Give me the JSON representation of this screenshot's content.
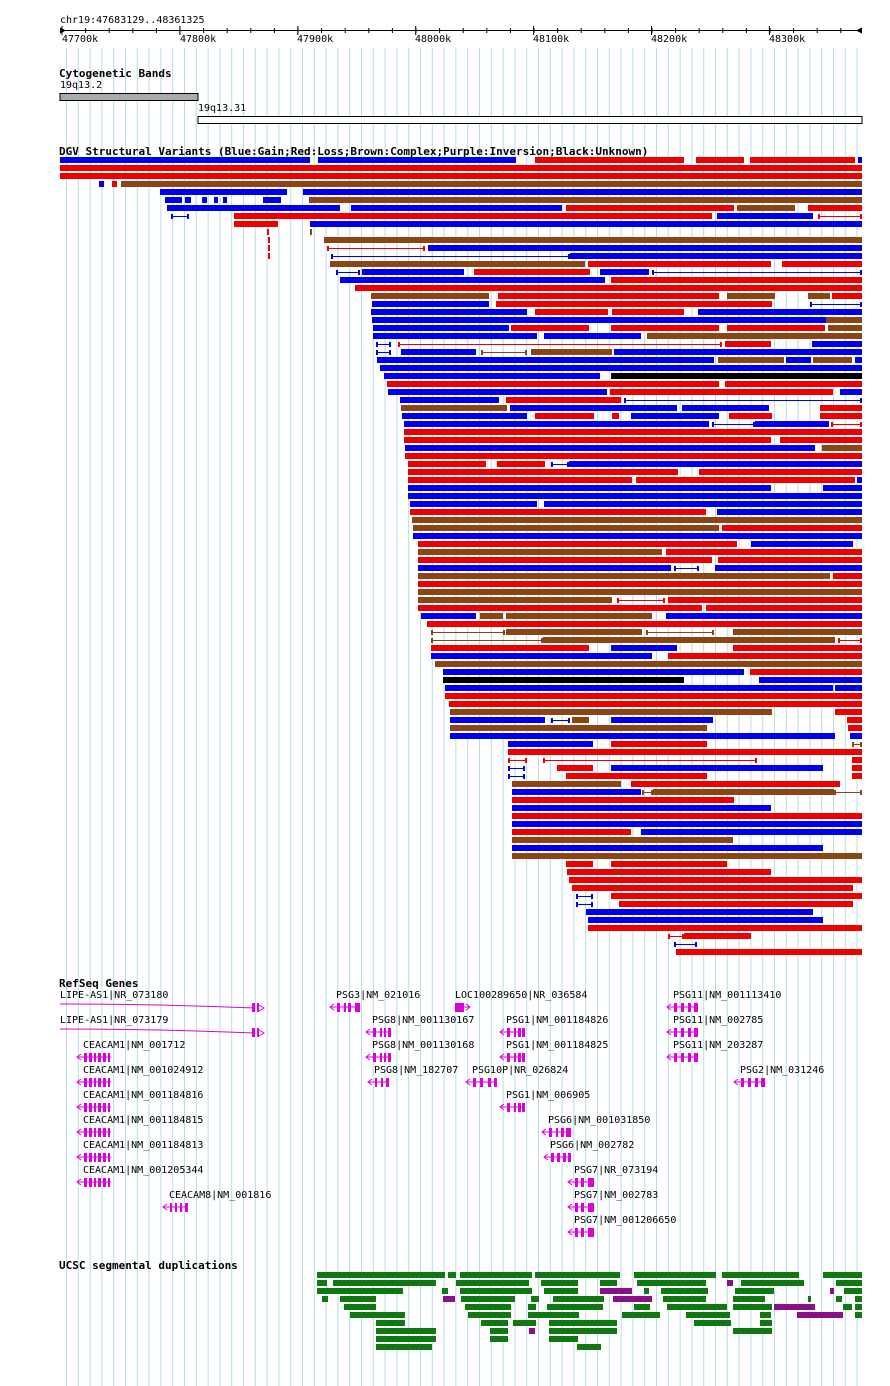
{
  "ruler": {
    "region": "chr19:47683129..48361325",
    "ticks": [
      "47700k",
      "47800k",
      "47900k",
      "48000k",
      "48100k",
      "48200k",
      "48300k"
    ]
  },
  "cytoband": {
    "title": "Cytogenetic Bands",
    "bands": [
      "19q13.2",
      "19q13.31"
    ]
  },
  "dgv": {
    "title": "DGV Structural Variants (Blue:Gain;Red:Loss;Brown:Complex;Purple:Inversion;Black:Unknown)",
    "colors": {
      "gain": "#0000ee",
      "loss": "#ee0000",
      "complex": "#8b4513",
      "inversion": "#800080",
      "unknown": "#000000"
    }
  },
  "refseq": {
    "title": "RefSeq Genes",
    "gene_color": "#dd00dd",
    "genes": [
      "LIPE-AS1|NR_073180",
      "LIPE-AS1|NR_073179",
      "CEACAM1|NM_001712",
      "CEACAM1|NM_001024912",
      "CEACAM1|NM_001184816",
      "CEACAM1|NM_001184815",
      "CEACAM1|NM_001184813",
      "CEACAM1|NM_001205344",
      "CEACAM8|NM_001816",
      "PSG3|NM_021016",
      "PSG8|NM_001130167",
      "PSG8|NM_001130168",
      "PSG8|NM_182707",
      "LOC100289650|NR_036584",
      "PSG1|NM_001184826",
      "PSG1|NM_001184825",
      "PSG10P|NR_026824",
      "PSG1|NM_006905",
      "PSG6|NM_001031850",
      "PSG6|NM_002782",
      "PSG7|NR_073194",
      "PSG7|NM_002783",
      "PSG7|NM_001206650",
      "PSG11|NM_001113410",
      "PSG11|NM_002785",
      "PSG11|NM_203287",
      "PSG2|NM_031246"
    ]
  },
  "segdups": {
    "title": "UCSC segmental duplications",
    "colors": {
      "dup": "#007700",
      "inv": "#880088"
    }
  }
}
